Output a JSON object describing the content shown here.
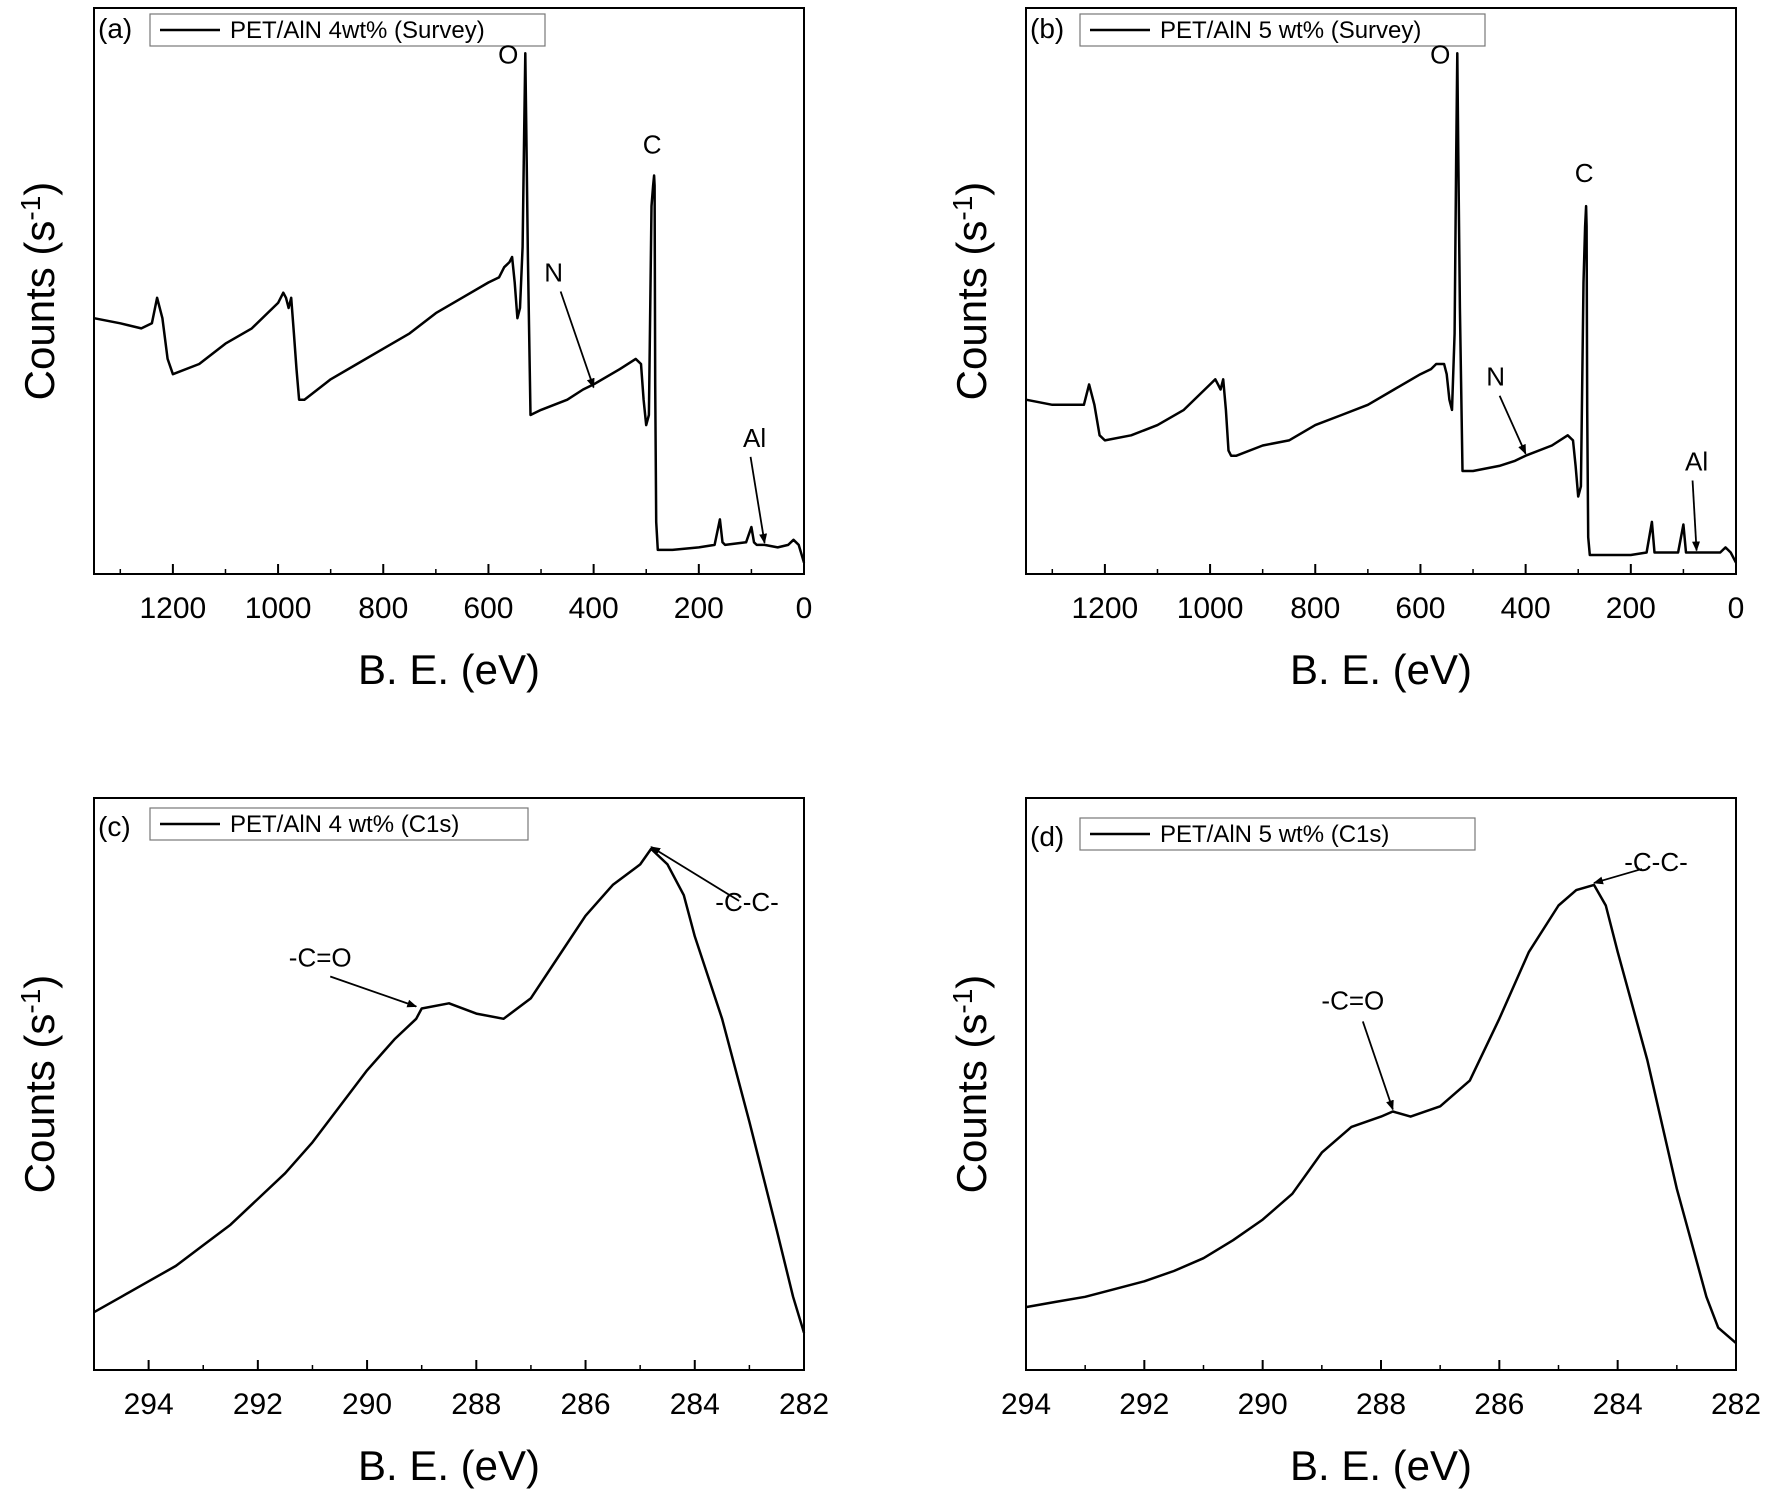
{
  "chart_data": [
    {
      "type": "line",
      "panel_label": "(a)",
      "legend": "PET/AlN 4wt% (Survey)",
      "xlabel": "B. E. (eV)",
      "ylabel_main": "Counts (s",
      "ylabel_sup": "-1",
      "ylabel_end": ")",
      "xlim": [
        1350,
        0
      ],
      "ylim": [
        0,
        100
      ],
      "xticks": [
        1200,
        1000,
        800,
        600,
        400,
        200,
        0
      ],
      "grid": false,
      "series": [
        {
          "x": [
            1350,
            1300,
            1260,
            1240,
            1230,
            1220,
            1210,
            1200,
            1150,
            1100,
            1050,
            1000,
            990,
            985,
            980,
            975,
            970,
            965,
            960,
            950,
            900,
            850,
            800,
            750,
            700,
            650,
            600,
            580,
            570,
            560,
            555,
            550,
            545,
            540,
            535,
            532,
            530,
            528,
            525,
            520,
            500,
            450,
            420,
            400,
            350,
            320,
            310,
            305,
            300,
            295,
            290,
            287,
            285,
            284,
            283,
            281,
            278,
            275,
            250,
            200,
            170,
            160,
            155,
            150,
            110,
            100,
            95,
            90,
            75,
            50,
            30,
            20,
            10,
            0
          ],
          "y": [
            48,
            47,
            46,
            47,
            52,
            48,
            40,
            37,
            39,
            43,
            46,
            51,
            53,
            52,
            50,
            52,
            45,
            38,
            32,
            32,
            36,
            39,
            42,
            45,
            49,
            52,
            55,
            56,
            58,
            59,
            60,
            55,
            48,
            50,
            62,
            85,
            100,
            85,
            60,
            29,
            30,
            32,
            34,
            35,
            38,
            40,
            39,
            32,
            27,
            29,
            70,
            74,
            76,
            74,
            35,
            8,
            2.5,
            2.5,
            2.5,
            3,
            3.5,
            8.5,
            4,
            3.5,
            4,
            7,
            4,
            3.5,
            3.5,
            3,
            3.5,
            4.5,
            3.5,
            0
          ]
        }
      ],
      "annotations": [
        {
          "label": "O",
          "x": 532,
          "y": 100
        },
        {
          "label": "C",
          "x": 285,
          "y": 76
        },
        {
          "label": "N",
          "x": 400,
          "y": 34
        },
        {
          "label": "Al",
          "x": 75,
          "y": 3.5
        }
      ]
    },
    {
      "type": "line",
      "panel_label": "(b)",
      "legend": "PET/AlN 5 wt% (Survey)",
      "xlabel": "B. E. (eV)",
      "ylabel_main": "Counts (s",
      "ylabel_sup": "-1",
      "ylabel_end": ")",
      "xlim": [
        1350,
        0
      ],
      "ylim": [
        0,
        100
      ],
      "xticks": [
        1200,
        1000,
        800,
        600,
        400,
        200,
        0
      ],
      "grid": false,
      "series": [
        {
          "x": [
            1350,
            1300,
            1260,
            1240,
            1230,
            1220,
            1210,
            1200,
            1150,
            1100,
            1050,
            1000,
            990,
            985,
            980,
            975,
            970,
            965,
            960,
            950,
            900,
            850,
            800,
            750,
            700,
            650,
            600,
            580,
            570,
            560,
            555,
            550,
            545,
            540,
            535,
            532,
            530,
            528,
            525,
            520,
            500,
            450,
            420,
            400,
            350,
            320,
            310,
            305,
            300,
            295,
            290,
            287,
            285,
            284,
            283,
            281,
            278,
            275,
            250,
            200,
            170,
            160,
            155,
            150,
            110,
            100,
            95,
            90,
            75,
            50,
            30,
            20,
            10,
            0
          ],
          "y": [
            32,
            31,
            31,
            31,
            35,
            31,
            25,
            24,
            25,
            27,
            30,
            35,
            36,
            35,
            34,
            36,
            30,
            22,
            21,
            21,
            23,
            24,
            27,
            29,
            31,
            34,
            37,
            38,
            39,
            39,
            39,
            37,
            32,
            30,
            45,
            80,
            100,
            80,
            50,
            18,
            18,
            19,
            20,
            21,
            23,
            25,
            24,
            19,
            13,
            15,
            55,
            66,
            70,
            66,
            30,
            5,
            1.5,
            1.5,
            1.5,
            1.5,
            2,
            8,
            2,
            2,
            2,
            7.5,
            2,
            2,
            2,
            2,
            2,
            3,
            2,
            0
          ]
        }
      ],
      "annotations": [
        {
          "label": "O",
          "x": 532,
          "y": 100
        },
        {
          "label": "C",
          "x": 285,
          "y": 70
        },
        {
          "label": "N",
          "x": 400,
          "y": 21
        },
        {
          "label": "Al",
          "x": 75,
          "y": 2
        }
      ]
    },
    {
      "type": "line",
      "panel_label": "(c)",
      "legend": "PET/AlN 4 wt% (C1s)",
      "xlabel": "B. E. (eV)",
      "ylabel_main": "Counts (s",
      "ylabel_sup": "-1",
      "ylabel_end": ")",
      "xlim": [
        295,
        282
      ],
      "ylim": [
        0,
        100
      ],
      "xticks": [
        294,
        292,
        290,
        288,
        286,
        284,
        282
      ],
      "grid": false,
      "series": [
        {
          "x": [
            295,
            294.5,
            294,
            293.5,
            293,
            292.5,
            292,
            291.5,
            291,
            290.5,
            290,
            289.5,
            289.1,
            289,
            288.5,
            288,
            287.5,
            287,
            286.5,
            286,
            285.5,
            285,
            284.8,
            284.5,
            284.2,
            284,
            283.5,
            283,
            282.5,
            282.2,
            282
          ],
          "y": [
            9,
            12,
            15,
            18,
            22,
            26,
            31,
            36,
            42,
            49,
            56,
            62,
            66,
            68,
            69,
            67,
            66,
            70,
            78,
            86,
            92,
            96,
            99,
            96,
            90,
            82,
            66,
            46,
            25,
            12,
            5
          ]
        }
      ],
      "annotations": [
        {
          "label": "-C=O",
          "x": 289.1,
          "y": 68
        },
        {
          "label": "-C-C-",
          "x": 284.8,
          "y": 99
        }
      ]
    },
    {
      "type": "line",
      "panel_label": "(d)",
      "legend": "PET/AlN 5 wt% (C1s)",
      "xlabel": "B. E. (eV)",
      "ylabel_main": "Counts (s",
      "ylabel_sup": "-1",
      "ylabel_end": ")",
      "xlim": [
        294,
        282
      ],
      "ylim": [
        0,
        100
      ],
      "xticks": [
        294,
        292,
        290,
        288,
        286,
        284,
        282
      ],
      "grid": false,
      "series": [
        {
          "x": [
            294,
            293.5,
            293,
            292.5,
            292,
            291.5,
            291,
            290.5,
            290,
            289.5,
            289,
            288.5,
            288,
            287.8,
            287.5,
            287,
            286.5,
            286,
            285.5,
            285,
            284.7,
            284.4,
            284.2,
            284,
            283.5,
            283,
            282.5,
            282.3,
            282
          ],
          "y": [
            10,
            11,
            12,
            13.5,
            15,
            17,
            19.5,
            23,
            27,
            32,
            40,
            45,
            47,
            48,
            47,
            49,
            54,
            66,
            79,
            88,
            91,
            92,
            88,
            79,
            58,
            33,
            12,
            6,
            3
          ]
        }
      ],
      "annotations": [
        {
          "label": "-C=O",
          "x": 287.8,
          "y": 48
        },
        {
          "label": "-C-C-",
          "x": 284.4,
          "y": 92
        }
      ]
    }
  ]
}
